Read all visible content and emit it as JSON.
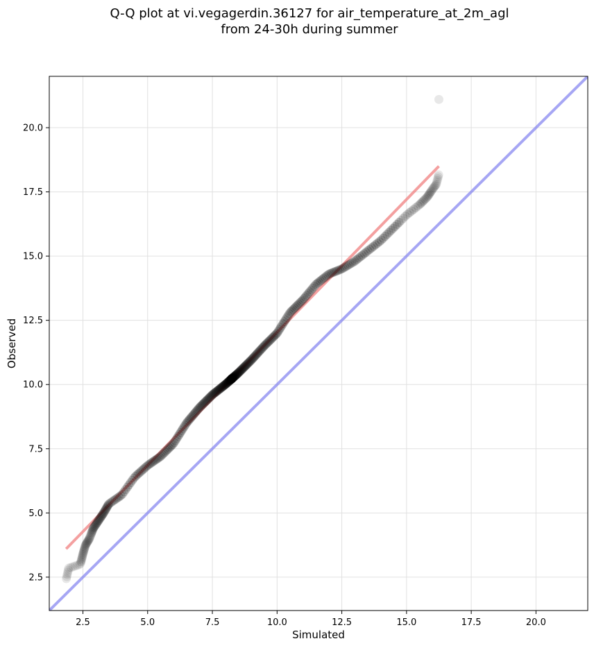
{
  "chart_data": {
    "type": "scatter",
    "title_line1": "Q-Q plot at vi.vegagerdin.36127 for air_temperature_at_2m_agl",
    "title_line2": "from 24-30h during summer",
    "xlabel": "Simulated",
    "ylabel": "Observed",
    "xlim": [
      1.2,
      22.0
    ],
    "ylim": [
      1.2,
      22.0
    ],
    "xticks": [
      2.5,
      5.0,
      7.5,
      10.0,
      12.5,
      15.0,
      17.5,
      20.0
    ],
    "yticks": [
      2.5,
      5.0,
      7.5,
      10.0,
      12.5,
      15.0,
      17.5,
      20.0
    ],
    "xtick_labels": [
      "2.5",
      "5.0",
      "7.5",
      "10.0",
      "12.5",
      "15.0",
      "17.5",
      "20.0"
    ],
    "ytick_labels": [
      "2.5",
      "5.0",
      "7.5",
      "10.0",
      "12.5",
      "15.0",
      "17.5",
      "20.0"
    ],
    "grid": true,
    "colors": {
      "points": "#000000",
      "fit_line": "#f08080",
      "identity_line": "#8080f0",
      "grid": "#e0e0e0"
    },
    "identity_line": {
      "x": [
        1.2,
        22.0
      ],
      "y": [
        1.2,
        22.0
      ]
    },
    "fit_line": {
      "x": [
        1.85,
        16.25
      ],
      "y": [
        3.6,
        18.5
      ]
    },
    "quantile_anchors": {
      "x": [
        1.85,
        1.95,
        2.4,
        2.5,
        2.6,
        2.75,
        2.9,
        3.1,
        3.3,
        3.5,
        4.0,
        4.5,
        5.0,
        5.5,
        6.0,
        6.5,
        7.0,
        7.5,
        8.0,
        8.5,
        9.0,
        9.5,
        10.0,
        10.5,
        11.0,
        11.5,
        12.0,
        12.5,
        13.0,
        13.5,
        14.0,
        14.5,
        15.0,
        15.5,
        15.8,
        16.0,
        16.15,
        16.25
      ],
      "y": [
        2.4,
        2.85,
        3.0,
        3.4,
        3.75,
        4.0,
        4.4,
        4.7,
        5.0,
        5.35,
        5.7,
        6.4,
        6.85,
        7.2,
        7.7,
        8.5,
        9.1,
        9.6,
        10.0,
        10.45,
        10.95,
        11.5,
        12.0,
        12.8,
        13.3,
        13.9,
        14.3,
        14.5,
        14.8,
        15.2,
        15.6,
        16.1,
        16.6,
        17.0,
        17.3,
        17.6,
        17.8,
        18.2
      ],
      "count": 360
    },
    "outliers": [
      {
        "x": 16.25,
        "y": 21.1
      }
    ]
  }
}
